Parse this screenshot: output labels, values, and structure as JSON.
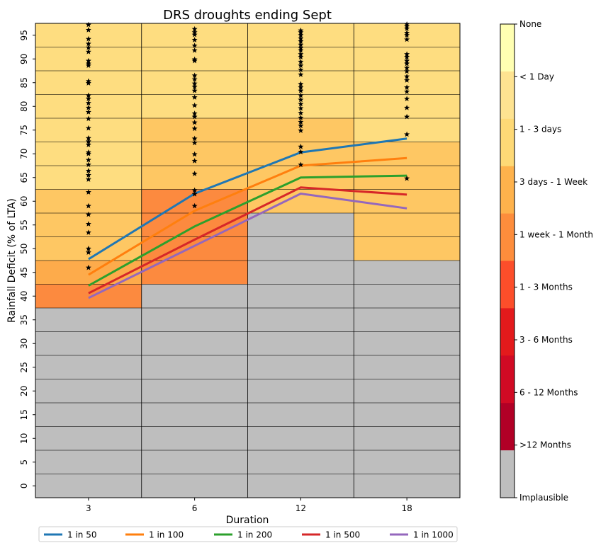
{
  "chart_data": {
    "type": "heatmap",
    "title": "DRS droughts ending Sept",
    "xlabel": "Duration",
    "ylabel": "Rainfall Deficit (% of LTA)",
    "x_categories": [
      "3",
      "6",
      "12",
      "18"
    ],
    "y_ticks": [
      0,
      5,
      10,
      15,
      20,
      25,
      30,
      35,
      40,
      45,
      50,
      55,
      60,
      65,
      70,
      75,
      80,
      85,
      90,
      95
    ],
    "ylim": [
      0,
      95
    ],
    "colorbar": {
      "labels": [
        "None",
        "< 1 Day",
        "1 - 3 days",
        "3 days - 1 Week",
        "1 week - 1 Month",
        "1 - 3 Months",
        "3 - 6 Months",
        "6 - 12 Months",
        ">12 Months",
        "Implausible"
      ],
      "colors": [
        "#ffffb2",
        "#fee391",
        "#fed976",
        "#feb24c",
        "#fd8d3c",
        "#fc4e2a",
        "#e31a1c",
        "#d10a24",
        "#b10026",
        "#bebebe"
      ]
    },
    "cells": [
      {
        "duration": "3",
        "from": 0,
        "to": 35,
        "category": "Implausible",
        "color": "#bebebe"
      },
      {
        "duration": "3",
        "from": 40,
        "to": 40,
        "category": "3 days - 1 Week",
        "color": "#fc8a3f"
      },
      {
        "duration": "3",
        "from": 45,
        "to": 45,
        "category": "1 - 3 days",
        "color": "#fdab4b"
      },
      {
        "duration": "3",
        "from": 50,
        "to": 60,
        "category": "< 1 Day",
        "color": "#fec763"
      },
      {
        "duration": "3",
        "from": 65,
        "to": 95,
        "category": "None",
        "color": "#fedd80"
      },
      {
        "duration": "6",
        "from": 0,
        "to": 40,
        "category": "Implausible",
        "color": "#bebebe"
      },
      {
        "duration": "6",
        "from": 45,
        "to": 60,
        "category": "3 days - 1 Week",
        "color": "#fc8a3f"
      },
      {
        "duration": "6",
        "from": 65,
        "to": 75,
        "category": "< 1 Day",
        "color": "#fec763"
      },
      {
        "duration": "6",
        "from": 80,
        "to": 95,
        "category": "None",
        "color": "#fedd80"
      },
      {
        "duration": "12",
        "from": 0,
        "to": 55,
        "category": "Implausible",
        "color": "#bebebe"
      },
      {
        "duration": "12",
        "from": 60,
        "to": 75,
        "category": "< 1 Day",
        "color": "#fec763"
      },
      {
        "duration": "12",
        "from": 80,
        "to": 95,
        "category": "None",
        "color": "#fedd80"
      },
      {
        "duration": "18",
        "from": 0,
        "to": 45,
        "category": "Implausible",
        "color": "#bebebe"
      },
      {
        "duration": "18",
        "from": 50,
        "to": 70,
        "category": "< 1 Day",
        "color": "#fec763"
      },
      {
        "duration": "18",
        "from": 75,
        "to": 95,
        "category": "None",
        "color": "#fedd80"
      }
    ],
    "series": [
      {
        "name": "1 in 50",
        "color": "#1f77b4",
        "values": [
          47.8,
          61.6,
          70.3,
          73.2
        ]
      },
      {
        "name": "1 in 100",
        "color": "#ff7f0e",
        "values": [
          44.5,
          58.0,
          67.5,
          69.1
        ]
      },
      {
        "name": "1 in 200",
        "color": "#2ca02c",
        "values": [
          42.2,
          54.7,
          65.0,
          65.4
        ]
      },
      {
        "name": "1 in 500",
        "color": "#d62728",
        "values": [
          40.6,
          51.9,
          62.9,
          61.4
        ]
      },
      {
        "name": "1 in 1000",
        "color": "#9467bd",
        "values": [
          39.6,
          50.6,
          61.6,
          58.5
        ]
      }
    ],
    "observed_points": {
      "marker": "star",
      "3": [
        46.0,
        49.2,
        50.0,
        53.4,
        55.2,
        57.2,
        59.0,
        61.9,
        64.6,
        65.5,
        66.4,
        67.7,
        68.7,
        70.0,
        70.3,
        71.9,
        72.6,
        73.3,
        75.4,
        77.4,
        78.8,
        79.7,
        80.7,
        81.6,
        82.3,
        84.9,
        85.3,
        88.6,
        89.0,
        89.6,
        91.5,
        92.4,
        93.2,
        94.2,
        96.1,
        97.2
      ],
      "6": [
        59.0,
        61.5,
        62.3,
        65.8,
        68.5,
        69.9,
        72.3,
        73.2,
        75.3,
        76.6,
        77.8,
        78.5,
        80.2,
        81.9,
        83.3,
        84.1,
        84.8,
        85.7,
        86.5,
        89.6,
        89.9,
        91.8,
        92.8,
        94.0,
        95.1,
        95.6,
        96.3
      ],
      "12": [
        67.7,
        70.4,
        71.5,
        74.9,
        75.9,
        76.7,
        77.6,
        78.6,
        79.6,
        80.5,
        81.4,
        82.3,
        83.3,
        84.0,
        84.7,
        86.7,
        87.7,
        88.6,
        89.4,
        90.4,
        91.0,
        91.8,
        92.3,
        93.0,
        93.7,
        94.3,
        95.0,
        95.6,
        96.0
      ],
      "18": [
        64.8,
        74.1,
        77.8,
        79.7,
        81.6,
        83.1,
        84.0,
        85.5,
        86.3,
        87.4,
        88.1,
        89.0,
        89.6,
        90.4,
        91.0,
        94.1,
        95.0,
        95.5,
        96.4,
        96.9,
        97.3
      ]
    },
    "grid": false,
    "legend_placement": "bottom"
  }
}
